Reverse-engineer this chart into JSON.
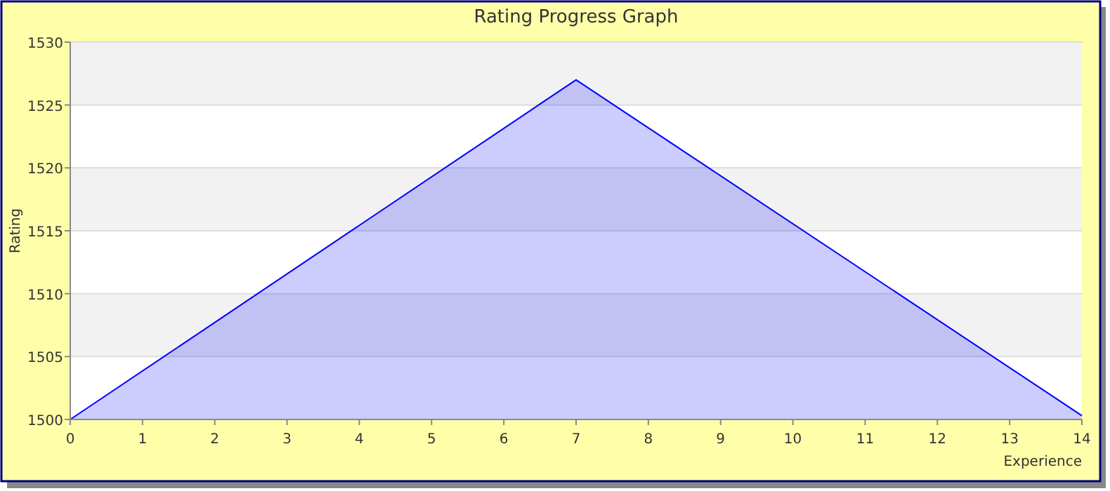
{
  "chart_data": {
    "type": "area",
    "title": "Rating Progress Graph",
    "xlabel": "Experience",
    "ylabel": "Rating",
    "x": [
      0,
      7,
      14
    ],
    "series": [
      {
        "color": "#0000ff",
        "values": [
          1500,
          1527,
          1500.3
        ]
      }
    ],
    "xlim": [
      0,
      14
    ],
    "xticks": [
      0,
      1,
      2,
      3,
      4,
      5,
      6,
      7,
      8,
      9,
      10,
      11,
      12,
      13,
      14
    ],
    "ylim": [
      1500,
      1530
    ],
    "yticks": [
      1500,
      1505,
      1510,
      1515,
      1520,
      1525,
      1530
    ],
    "grid": "y"
  }
}
